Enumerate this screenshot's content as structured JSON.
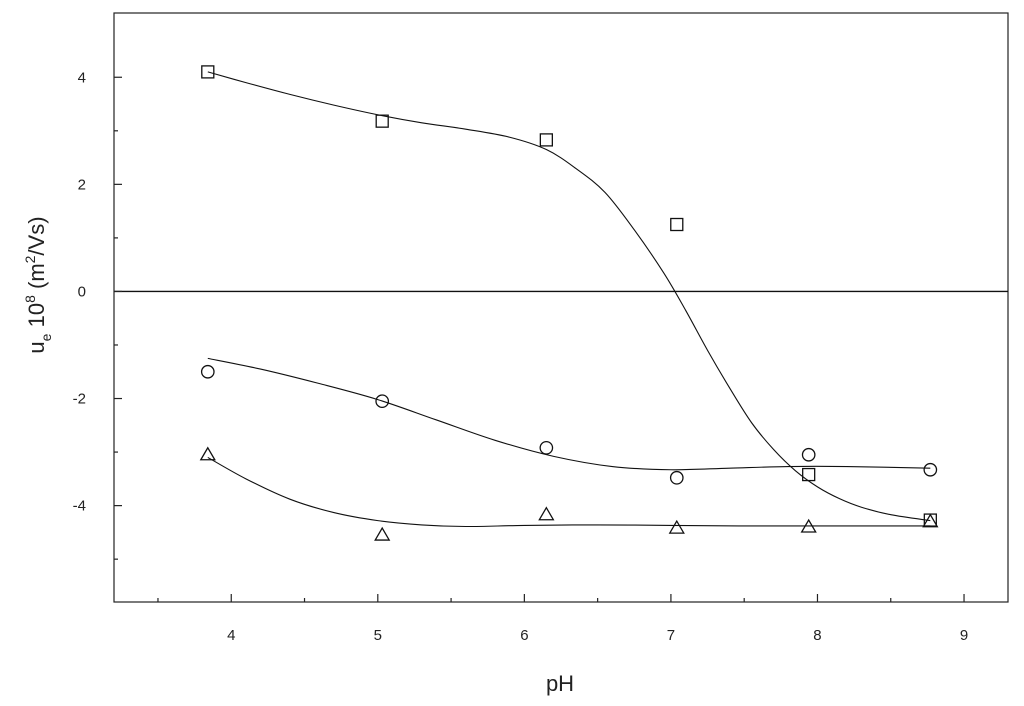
{
  "chart_data": {
    "type": "scatter",
    "xlabel": "pH",
    "ylabel": {
      "base": "u",
      "subscript": "e",
      "mid": " 10",
      "exp": "8",
      "unit_open": " (m",
      "unit_exp": "2",
      "unit_close": "/Vs)"
    },
    "xlim": [
      3.2,
      9.3
    ],
    "ylim": [
      -5.8,
      5.2
    ],
    "x_ticks_major": [
      4,
      5,
      6,
      7,
      8,
      9
    ],
    "x_tick_labels": [
      "4",
      "5",
      "6",
      "7",
      "8",
      "9"
    ],
    "x_ticks_minor": [
      3.5,
      4.5,
      5.5,
      6.5,
      7.5,
      8.5
    ],
    "y_ticks_major": [
      -4,
      -2,
      0,
      2,
      4
    ],
    "y_tick_labels": [
      "-4",
      "-2",
      "0",
      "2",
      "4"
    ],
    "y_ticks_minor": [
      -5,
      -3,
      -1,
      1,
      3
    ],
    "reference_line_y": 0,
    "grid": false,
    "legend": "none",
    "series": [
      {
        "marker": "square",
        "x": [
          3.84,
          5.03,
          6.15,
          7.04,
          7.94,
          8.77
        ],
        "y": [
          4.1,
          3.18,
          2.83,
          1.25,
          -3.42,
          -4.27
        ],
        "fit_x": [
          3.84,
          4.1,
          4.4,
          4.7,
          5.0,
          5.3,
          5.6,
          5.9,
          6.15,
          6.35,
          6.55,
          6.75,
          6.95,
          7.1,
          7.25,
          7.4,
          7.55,
          7.7,
          7.85,
          8.0,
          8.15,
          8.3,
          8.5,
          8.77
        ],
        "fit_y": [
          4.1,
          3.9,
          3.68,
          3.48,
          3.3,
          3.15,
          3.03,
          2.88,
          2.65,
          2.3,
          1.85,
          1.15,
          0.35,
          -0.35,
          -1.1,
          -1.8,
          -2.45,
          -2.95,
          -3.35,
          -3.65,
          -3.87,
          -4.03,
          -4.17,
          -4.28
        ]
      },
      {
        "marker": "circle",
        "x": [
          3.84,
          5.03,
          6.15,
          7.04,
          7.94,
          8.77
        ],
        "y": [
          -1.5,
          -2.05,
          -2.92,
          -3.48,
          -3.05,
          -3.33
        ],
        "fit_x": [
          3.84,
          4.2,
          4.6,
          5.0,
          5.4,
          5.8,
          6.2,
          6.6,
          7.0,
          7.4,
          7.8,
          8.2,
          8.77
        ],
        "fit_y": [
          -1.25,
          -1.45,
          -1.72,
          -2.02,
          -2.4,
          -2.78,
          -3.08,
          -3.27,
          -3.33,
          -3.3,
          -3.27,
          -3.27,
          -3.3
        ]
      },
      {
        "marker": "triangle",
        "x": [
          3.84,
          5.03,
          6.15,
          7.04,
          7.94,
          8.77
        ],
        "y": [
          -3.05,
          -4.55,
          -4.17,
          -4.42,
          -4.4,
          -4.3
        ],
        "fit_x": [
          3.84,
          4.1,
          4.4,
          4.7,
          5.0,
          5.3,
          5.6,
          6.0,
          6.5,
          7.0,
          7.5,
          8.0,
          8.5,
          8.77
        ],
        "fit_y": [
          -3.1,
          -3.5,
          -3.88,
          -4.13,
          -4.28,
          -4.36,
          -4.39,
          -4.37,
          -4.36,
          -4.37,
          -4.38,
          -4.38,
          -4.38,
          -4.38
        ]
      }
    ]
  }
}
